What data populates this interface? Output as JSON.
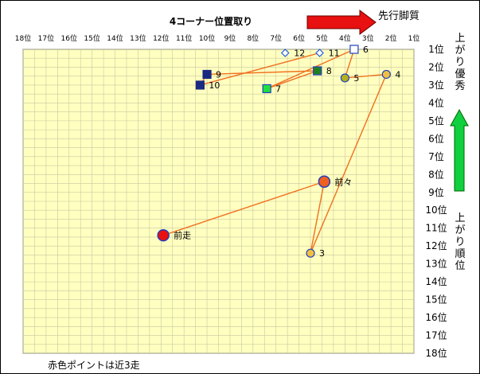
{
  "chart_data": {
    "type": "scatter",
    "title": "4コーナー位置取り",
    "x_ticks": [
      "18位",
      "17位",
      "16位",
      "15位",
      "14位",
      "13位",
      "12位",
      "11位",
      "10位",
      "9位",
      "8位",
      "7位",
      "6位",
      "5位",
      "4位",
      "3位",
      "2位",
      "1位"
    ],
    "y_ticks": [
      "1位",
      "2位",
      "3位",
      "4位",
      "5位",
      "6位",
      "7位",
      "8位",
      "9位",
      "10位",
      "11位",
      "12位",
      "13位",
      "14位",
      "15位",
      "16位",
      "17位",
      "18位"
    ],
    "x_axis_direction": "reversed (18位 left → 1位 right)",
    "y_axis_direction": "1位 top → 18位 bottom",
    "xlim": [
      18,
      1
    ],
    "ylim": [
      1,
      18
    ],
    "grid": true,
    "plot_background": "#ffffc0",
    "line_color": "#f07020",
    "arrow_right_label": "先行脚質",
    "arrow_up_label_top": "上がり優秀",
    "arrow_up_label_bottom": "上がり順位",
    "note": "赤色ポイントは近3走",
    "points": [
      {
        "label": "前走",
        "x": 11.9,
        "y": 11.4,
        "shape": "circle-large",
        "fill": "#e81010",
        "stroke": "#2040c0"
      },
      {
        "label": "前々",
        "x": 4.9,
        "y": 8.4,
        "shape": "circle-large",
        "fill": "#f06020",
        "stroke": "#2040c0"
      },
      {
        "label": "3",
        "x": 5.5,
        "y": 12.4,
        "shape": "circle",
        "fill": "#f0c040",
        "stroke": "#2040c0"
      },
      {
        "label": "4",
        "x": 2.2,
        "y": 2.4,
        "shape": "circle",
        "fill": "#f0c040",
        "stroke": "#2040c0"
      },
      {
        "label": "5",
        "x": 4.0,
        "y": 2.6,
        "shape": "circle",
        "fill": "#b0b020",
        "stroke": "#2040c0"
      },
      {
        "label": "6",
        "x": 3.6,
        "y": 1.0,
        "shape": "square-open",
        "fill": "#ffffff",
        "stroke": "#2040c0"
      },
      {
        "label": "7",
        "x": 7.4,
        "y": 3.2,
        "shape": "square",
        "fill": "#20e040",
        "stroke": "#2040c0"
      },
      {
        "label": "8",
        "x": 5.2,
        "y": 2.2,
        "shape": "square",
        "fill": "#208020",
        "stroke": "#2040c0"
      },
      {
        "label": "9",
        "x": 10.0,
        "y": 2.4,
        "shape": "square",
        "fill": "#1a2a80",
        "stroke": "#1a2a80"
      },
      {
        "label": "10",
        "x": 10.3,
        "y": 3.0,
        "shape": "square",
        "fill": "#1a2a80",
        "stroke": "#1a2a80"
      },
      {
        "label": "11",
        "x": 5.1,
        "y": 1.2,
        "shape": "diamond-open",
        "fill": "#ffffff",
        "stroke": "#2060e0"
      },
      {
        "label": "12",
        "x": 6.6,
        "y": 1.2,
        "shape": "diamond-open",
        "fill": "#ffffff",
        "stroke": "#2060e0"
      }
    ],
    "line_sequence": [
      "前走",
      "前々",
      "3",
      "4",
      "5",
      "6",
      "7",
      "8",
      "9",
      "10",
      "11"
    ]
  }
}
